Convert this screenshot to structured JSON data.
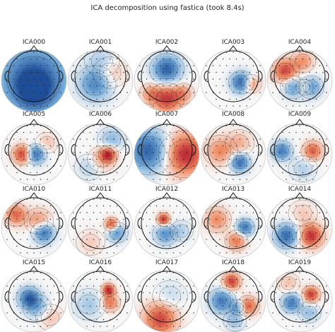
{
  "figure": {
    "title": "ICA decomposition using fastica (took 8.4s)"
  },
  "chart_data": {
    "type": "topomap-grid",
    "title": "ICA decomposition using fastica (took 8.4s)",
    "colormap": [
      "#1f4e99",
      "#6fa6d6",
      "#f7f7f7",
      "#ef8a62",
      "#b2182b"
    ],
    "components": [
      {
        "name": "ICA000",
        "blobs": [
          [
            0.0,
            0.05,
            -1.0,
            0.75
          ],
          [
            0.0,
            0.35,
            -0.5,
            0.35
          ]
        ]
      },
      {
        "name": "ICA001",
        "blobs": [
          [
            -0.15,
            0.15,
            -0.7,
            0.35
          ],
          [
            0.3,
            -0.2,
            0.35,
            0.3
          ],
          [
            0.05,
            -0.55,
            -0.3,
            0.3
          ]
        ]
      },
      {
        "name": "ICA002",
        "blobs": [
          [
            0.0,
            -0.3,
            -0.9,
            0.3
          ],
          [
            0.0,
            0.6,
            0.85,
            0.3
          ],
          [
            -0.5,
            0.45,
            0.4,
            0.2
          ],
          [
            0.5,
            0.45,
            0.4,
            0.2
          ]
        ]
      },
      {
        "name": "ICA003",
        "blobs": [
          [
            0.25,
            0.1,
            -0.9,
            0.22
          ],
          [
            0.55,
            0.15,
            0.55,
            0.18
          ]
        ]
      },
      {
        "name": "ICA004",
        "blobs": [
          [
            -0.45,
            -0.25,
            0.8,
            0.25
          ],
          [
            -0.2,
            0.25,
            -0.55,
            0.22
          ],
          [
            0.35,
            0.25,
            -0.6,
            0.22
          ],
          [
            0.1,
            -0.55,
            0.45,
            0.22
          ],
          [
            0.15,
            0.25,
            0.4,
            0.15
          ]
        ]
      },
      {
        "name": "ICA005",
        "blobs": [
          [
            -0.35,
            0.05,
            0.85,
            0.2
          ],
          [
            0.05,
            0.05,
            -0.85,
            0.2
          ],
          [
            0.4,
            -0.3,
            0.25,
            0.2
          ]
        ]
      },
      {
        "name": "ICA006",
        "blobs": [
          [
            0.25,
            0.05,
            0.85,
            0.17
          ],
          [
            0.05,
            0.2,
            0.35,
            0.25
          ],
          [
            0.35,
            -0.4,
            -0.4,
            0.25
          ],
          [
            -0.35,
            0.45,
            -0.25,
            0.25
          ]
        ]
      },
      {
        "name": "ICA007",
        "blobs": [
          [
            -0.55,
            -0.05,
            -0.9,
            0.45
          ],
          [
            0.55,
            0.05,
            0.95,
            0.45
          ]
        ]
      },
      {
        "name": "ICA008",
        "blobs": [
          [
            0.2,
            0.3,
            -0.85,
            0.2
          ],
          [
            -0.4,
            -0.05,
            0.5,
            0.3
          ],
          [
            0.2,
            -0.3,
            0.3,
            0.25
          ]
        ]
      },
      {
        "name": "ICA009",
        "blobs": [
          [
            -0.55,
            -0.05,
            -0.75,
            0.2
          ],
          [
            0.4,
            -0.05,
            0.7,
            0.2
          ],
          [
            0.1,
            0.5,
            -0.25,
            0.25
          ]
        ]
      },
      {
        "name": "ICA010",
        "blobs": [
          [
            -0.55,
            -0.35,
            0.65,
            0.22
          ],
          [
            0.3,
            0.2,
            -0.85,
            0.22
          ],
          [
            0.15,
            -0.15,
            0.5,
            0.25
          ]
        ]
      },
      {
        "name": "ICA011",
        "blobs": [
          [
            0.35,
            -0.05,
            0.85,
            0.14
          ],
          [
            0.5,
            0.2,
            -0.6,
            0.2
          ],
          [
            -0.3,
            0.5,
            0.2,
            0.25
          ]
        ]
      },
      {
        "name": "ICA012",
        "blobs": [
          [
            -0.1,
            -0.2,
            0.95,
            0.13
          ],
          [
            -0.05,
            0.25,
            -0.6,
            0.22
          ],
          [
            0.45,
            0.15,
            -0.25,
            0.2
          ]
        ]
      },
      {
        "name": "ICA013",
        "blobs": [
          [
            -0.5,
            -0.2,
            0.5,
            0.25
          ],
          [
            0.35,
            0.05,
            -0.8,
            0.18
          ],
          [
            0.1,
            0.45,
            0.6,
            0.2
          ]
        ]
      },
      {
        "name": "ICA014",
        "blobs": [
          [
            -0.4,
            0.3,
            -0.85,
            0.25
          ],
          [
            0.35,
            0.3,
            0.9,
            0.25
          ],
          [
            0.1,
            -0.4,
            0.2,
            0.25
          ]
        ]
      },
      {
        "name": "ICA015",
        "blobs": [
          [
            -0.15,
            -0.05,
            -0.85,
            0.22
          ],
          [
            0.1,
            0.25,
            -0.4,
            0.25
          ],
          [
            0.5,
            0.55,
            0.25,
            0.25
          ]
        ]
      },
      {
        "name": "ICA016",
        "blobs": [
          [
            0.25,
            -0.3,
            0.95,
            0.13
          ],
          [
            0.3,
            0.1,
            0.6,
            0.18
          ],
          [
            -0.35,
            0.15,
            -0.3,
            0.3
          ]
        ]
      },
      {
        "name": "ICA017",
        "blobs": [
          [
            -0.2,
            0.6,
            0.8,
            0.35
          ],
          [
            0.1,
            -0.1,
            -0.2,
            0.3
          ]
        ]
      },
      {
        "name": "ICA018",
        "blobs": [
          [
            -0.05,
            -0.55,
            0.85,
            0.18
          ],
          [
            -0.35,
            0.05,
            -0.75,
            0.25
          ],
          [
            0.45,
            0.2,
            0.7,
            0.2
          ],
          [
            0.15,
            0.25,
            -0.55,
            0.15
          ],
          [
            0.05,
            0.65,
            -0.35,
            0.2
          ]
        ]
      },
      {
        "name": "ICA019",
        "blobs": [
          [
            0.35,
            -0.15,
            0.85,
            0.17
          ],
          [
            -0.25,
            0.1,
            -0.75,
            0.2
          ],
          [
            0.3,
            0.4,
            -0.35,
            0.2
          ],
          [
            -0.35,
            -0.5,
            0.25,
            0.2
          ]
        ]
      }
    ]
  }
}
